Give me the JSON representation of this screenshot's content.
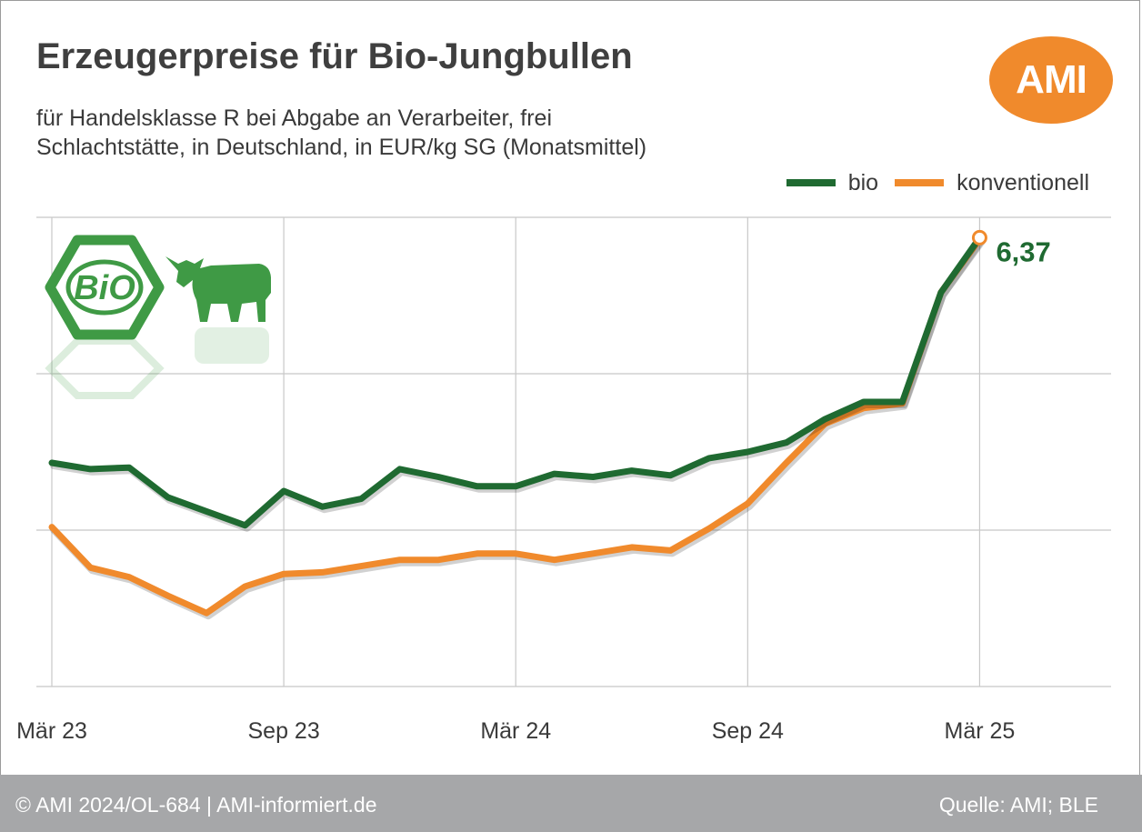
{
  "title": "Erzeugerpreise für Bio-Jungbullen",
  "subtitle_line1": "für Handelsklasse R bei Abgabe an Verarbeiter, frei",
  "subtitle_line2": "Schlachtstätte, in Deutschland, in EUR/kg SG (Monatsmittel)",
  "logo_text": "AMI",
  "bio_badge_text": "BiO",
  "footer": {
    "copyright": "© AMI 2024/OL-684 | AMI-informiert.de",
    "source": "Quelle: AMI; BLE"
  },
  "colors": {
    "bio": "#1f6a31",
    "konventionell": "#f08a2c",
    "logo": "#f08a2c",
    "footer": "#a6a7a9",
    "grid": "#c8c8c8"
  },
  "chart_data": {
    "type": "line",
    "title": "Erzeugerpreise für Bio-Jungbullen",
    "xlabel": "",
    "ylabel": "",
    "ylim": [
      3.5,
      6.5
    ],
    "yticks": [
      3.5,
      4.5,
      5.5,
      6.5
    ],
    "y_tick_labels_shown": false,
    "x_ticks": [
      "Mär 23",
      "Sep 23",
      "Mär 24",
      "Sep 24",
      "Mär 25"
    ],
    "x_tick_positions": [
      0,
      6,
      12,
      18,
      24
    ],
    "xlim": [
      -0.4,
      27.4
    ],
    "grid": true,
    "legend_position": "top-right",
    "x": [
      0,
      1,
      2,
      3,
      4,
      5,
      6,
      7,
      8,
      9,
      10,
      11,
      12,
      13,
      14,
      15,
      16,
      17,
      18,
      19,
      20,
      21,
      22,
      23,
      24
    ],
    "series": [
      {
        "name": "bio",
        "color": "#1f6a31",
        "values": [
          4.93,
          4.89,
          4.9,
          4.71,
          4.62,
          4.53,
          4.75,
          4.65,
          4.7,
          4.89,
          4.84,
          4.78,
          4.78,
          4.86,
          4.84,
          4.88,
          4.85,
          4.96,
          5.0,
          5.06,
          5.21,
          5.32,
          5.32,
          6.02,
          6.37
        ]
      },
      {
        "name": "konventionell",
        "color": "#f08a2c",
        "values": [
          4.52,
          4.26,
          4.2,
          4.08,
          3.97,
          4.14,
          4.22,
          4.23,
          4.27,
          4.31,
          4.31,
          4.35,
          4.35,
          4.31,
          4.35,
          4.39,
          4.37,
          4.51,
          4.67,
          4.93,
          5.18,
          5.28,
          5.31,
          6.02,
          6.36
        ]
      }
    ],
    "annotation": {
      "text": "6,37",
      "series": "bio",
      "x": 24
    }
  }
}
